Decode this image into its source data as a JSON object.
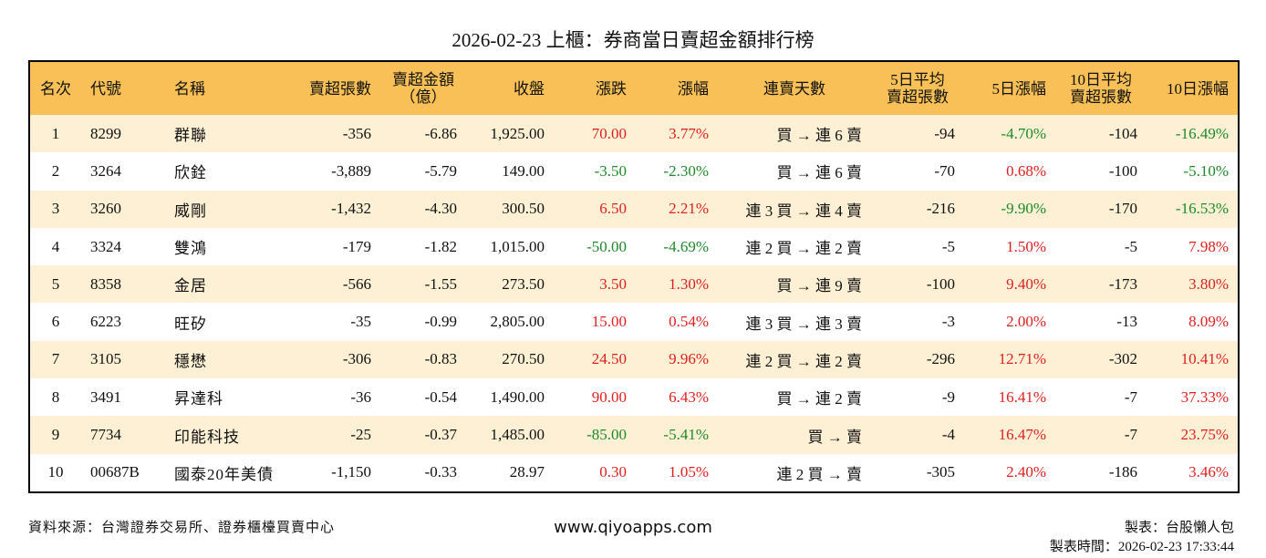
{
  "header": {
    "title": "2026-02-23 上櫃：券商當日賣超金額排行榜"
  },
  "table": {
    "columns": [
      "名次",
      "代號",
      "名稱",
      "賣超張數",
      [
        "賣超金額",
        "（億）"
      ],
      "收盤",
      "漲跌",
      "漲幅",
      "連賣天數",
      [
        "5日平均",
        "賣超張數"
      ],
      "5日漲幅",
      [
        "10日平均",
        "賣超張數"
      ],
      "10日漲幅"
    ],
    "rows": [
      [
        "1",
        "8299",
        "群聯",
        "-356",
        "-6.86",
        "1,925.00",
        "70.00",
        "3.77%",
        "買 → 連 6 賣",
        "-94",
        "-4.70%",
        "-104",
        "-16.49%"
      ],
      [
        "2",
        "3264",
        "欣銓",
        "-3,889",
        "-5.79",
        "149.00",
        "-3.50",
        "-2.30%",
        "買 → 連 6 賣",
        "-70",
        "0.68%",
        "-100",
        "-5.10%"
      ],
      [
        "3",
        "3260",
        "威剛",
        "-1,432",
        "-4.30",
        "300.50",
        "6.50",
        "2.21%",
        "連 3 買 → 連 4 賣",
        "-216",
        "-9.90%",
        "-170",
        "-16.53%"
      ],
      [
        "4",
        "3324",
        "雙鴻",
        "-179",
        "-1.82",
        "1,015.00",
        "-50.00",
        "-4.69%",
        "連 2 買 → 連 2 賣",
        "-5",
        "1.50%",
        "-5",
        "7.98%"
      ],
      [
        "5",
        "8358",
        "金居",
        "-566",
        "-1.55",
        "273.50",
        "3.50",
        "1.30%",
        "買 → 連 9 賣",
        "-100",
        "9.40%",
        "-173",
        "3.80%"
      ],
      [
        "6",
        "6223",
        "旺矽",
        "-35",
        "-0.99",
        "2,805.00",
        "15.00",
        "0.54%",
        "連 3 買 → 連 3 賣",
        "-3",
        "2.00%",
        "-13",
        "8.09%"
      ],
      [
        "7",
        "3105",
        "穩懋",
        "-306",
        "-0.83",
        "270.50",
        "24.50",
        "9.96%",
        "連 2 買 → 連 2 賣",
        "-296",
        "12.71%",
        "-302",
        "10.41%"
      ],
      [
        "8",
        "3491",
        "昇達科",
        "-36",
        "-0.54",
        "1,490.00",
        "90.00",
        "6.43%",
        "買 → 連 2 賣",
        "-9",
        "16.41%",
        "-7",
        "37.33%"
      ],
      [
        "9",
        "7734",
        "印能科技",
        "-25",
        "-0.37",
        "1,485.00",
        "-85.00",
        "-5.41%",
        "買 → 賣",
        "-4",
        "16.47%",
        "-7",
        "23.75%"
      ],
      [
        "10",
        "00687B",
        "國泰20年美債",
        "-1,150",
        "-0.33",
        "28.97",
        "0.30",
        "1.05%",
        "連 2 買 → 賣",
        "-305",
        "2.40%",
        "-186",
        "3.46%"
      ]
    ]
  },
  "footer": {
    "source": "資料來源：台灣證券交易所、證券櫃檯買賣中心",
    "site": "www.qiyoapps.com",
    "maker": "製表：台股懶人包",
    "time": "製表時間：2026-02-23 17:33:44"
  }
}
